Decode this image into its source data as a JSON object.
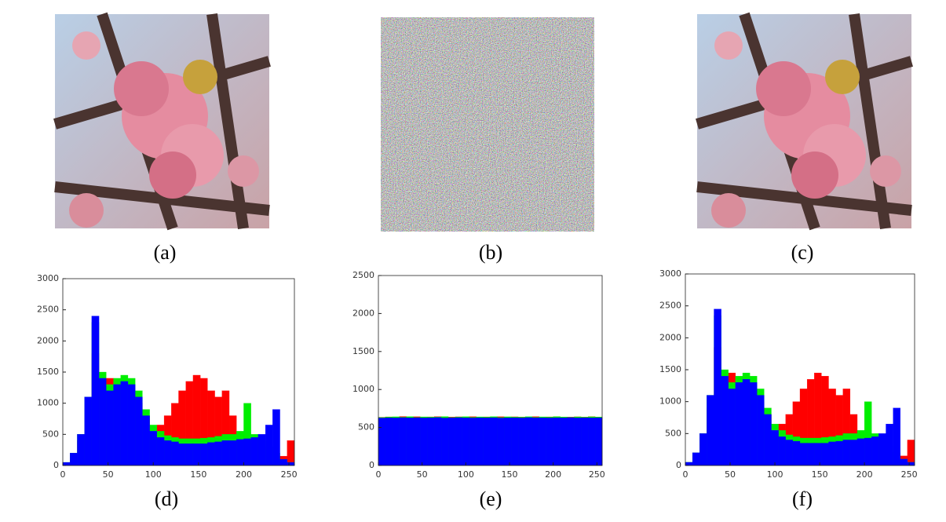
{
  "images": [
    {
      "caption": "(a)"
    },
    {
      "caption": "(b)"
    },
    {
      "caption": "(c)"
    }
  ],
  "chart_data": [
    {
      "type": "histogram",
      "caption": "(d)",
      "bins": [
        0,
        8,
        16,
        24,
        32,
        40,
        48,
        56,
        64,
        72,
        80,
        88,
        96,
        104,
        112,
        120,
        128,
        136,
        144,
        152,
        160,
        168,
        176,
        184,
        192,
        200,
        208,
        216,
        224,
        232,
        240,
        248,
        256
      ],
      "xlim": [
        0,
        256
      ],
      "xticks": [
        0,
        50,
        100,
        150,
        200,
        250
      ],
      "ylim": [
        0,
        3000
      ],
      "yticks": [
        0,
        500,
        1000,
        1500,
        2000,
        2500,
        3000
      ],
      "series": [
        {
          "color": "#ff0000",
          "values": [
            30,
            150,
            400,
            900,
            1800,
            1300,
            1400,
            1300,
            1300,
            1250,
            1000,
            800,
            600,
            650,
            800,
            1000,
            1200,
            1350,
            1450,
            1400,
            1200,
            1100,
            1200,
            800,
            500,
            400,
            300,
            200,
            150,
            100,
            150,
            400
          ]
        },
        {
          "color": "#00ee00",
          "values": [
            50,
            200,
            500,
            1100,
            2300,
            1500,
            1300,
            1400,
            1450,
            1400,
            1200,
            900,
            650,
            550,
            480,
            450,
            430,
            430,
            430,
            440,
            450,
            470,
            500,
            500,
            550,
            1000,
            500,
            400,
            300,
            200,
            100,
            50
          ]
        },
        {
          "color": "#0000ff",
          "values": [
            50,
            200,
            500,
            1100,
            2400,
            1400,
            1200,
            1300,
            1350,
            1300,
            1100,
            800,
            550,
            450,
            400,
            380,
            350,
            350,
            350,
            350,
            370,
            380,
            400,
            400,
            420,
            430,
            450,
            500,
            650,
            900,
            100,
            50
          ]
        }
      ]
    },
    {
      "type": "histogram",
      "caption": "(e)",
      "bins": [
        0,
        8,
        16,
        24,
        32,
        40,
        48,
        56,
        64,
        72,
        80,
        88,
        96,
        104,
        112,
        120,
        128,
        136,
        144,
        152,
        160,
        168,
        176,
        184,
        192,
        200,
        208,
        216,
        224,
        232,
        240,
        248,
        256
      ],
      "xlim": [
        0,
        256
      ],
      "xticks": [
        0,
        50,
        100,
        150,
        200,
        250
      ],
      "ylim": [
        0,
        2500
      ],
      "yticks": [
        0,
        500,
        1000,
        1500,
        2000,
        2500
      ],
      "series": [
        {
          "color": "#ff0000",
          "values": [
            635,
            640,
            630,
            645,
            638,
            642,
            636,
            640,
            644,
            632,
            639,
            641,
            637,
            643,
            635,
            640,
            638,
            642,
            636,
            641,
            639,
            637,
            644,
            633,
            640,
            642,
            636,
            639,
            641,
            638,
            643,
            637
          ]
        },
        {
          "color": "#00ee00",
          "values": [
            632,
            638,
            641,
            636,
            643,
            634,
            640,
            637,
            639,
            644,
            633,
            638,
            642,
            635,
            640,
            637,
            643,
            634,
            641,
            638,
            636,
            642,
            635,
            640,
            637,
            643,
            639,
            635,
            640,
            636,
            641,
            639
          ]
        },
        {
          "color": "#0000ff",
          "values": [
            625,
            628,
            626,
            630,
            627,
            629,
            626,
            628,
            631,
            625,
            627,
            630,
            628,
            626,
            629,
            627,
            630,
            625,
            628,
            629,
            626,
            631,
            627,
            628,
            626,
            629,
            627,
            630,
            626,
            628,
            627,
            629
          ]
        }
      ]
    },
    {
      "type": "histogram",
      "caption": "(f)",
      "bins": [
        0,
        8,
        16,
        24,
        32,
        40,
        48,
        56,
        64,
        72,
        80,
        88,
        96,
        104,
        112,
        120,
        128,
        136,
        144,
        152,
        160,
        168,
        176,
        184,
        192,
        200,
        208,
        216,
        224,
        232,
        240,
        248,
        256
      ],
      "xlim": [
        0,
        256
      ],
      "xticks": [
        0,
        50,
        100,
        150,
        200,
        250
      ],
      "ylim": [
        0,
        3000
      ],
      "yticks": [
        0,
        500,
        1000,
        1500,
        2000,
        2500,
        3000
      ],
      "series": [
        {
          "color": "#ff0000",
          "values": [
            30,
            150,
            400,
            900,
            1850,
            1300,
            1450,
            1300,
            1300,
            1250,
            1000,
            800,
            600,
            650,
            800,
            1000,
            1200,
            1350,
            1450,
            1400,
            1200,
            1100,
            1200,
            800,
            500,
            400,
            300,
            200,
            150,
            100,
            150,
            400
          ]
        },
        {
          "color": "#00ee00",
          "values": [
            50,
            200,
            500,
            1100,
            2350,
            1500,
            1300,
            1400,
            1450,
            1400,
            1200,
            900,
            650,
            550,
            480,
            450,
            430,
            430,
            430,
            440,
            450,
            470,
            500,
            500,
            550,
            1000,
            500,
            400,
            300,
            200,
            100,
            50
          ]
        },
        {
          "color": "#0000ff",
          "values": [
            50,
            200,
            500,
            1100,
            2450,
            1400,
            1200,
            1300,
            1350,
            1300,
            1100,
            800,
            550,
            450,
            400,
            380,
            350,
            350,
            350,
            350,
            370,
            380,
            400,
            400,
            420,
            430,
            450,
            500,
            650,
            900,
            100,
            50
          ]
        }
      ]
    }
  ]
}
